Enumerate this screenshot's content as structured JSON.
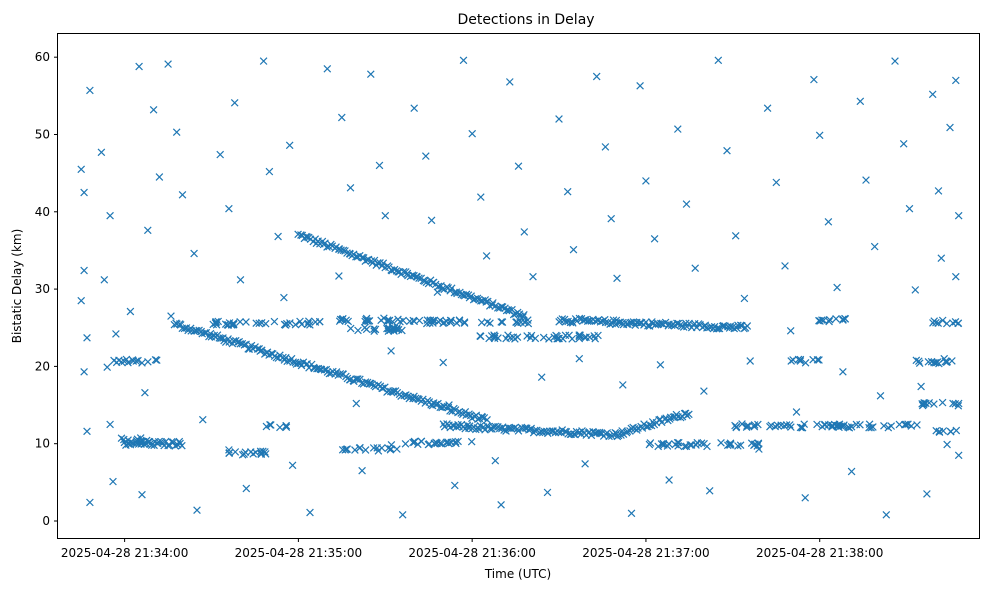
{
  "chart_data": {
    "type": "scatter",
    "title": "Detections in Delay",
    "xlabel": "Time (UTC)",
    "ylabel": "Bistatic Delay (km)",
    "marker": "x",
    "color": "#1f77b4",
    "grid": false,
    "x_start": "2025-04-28 21:33:44",
    "x_end": "2025-04-28 21:38:48",
    "xlim": [
      "2025-04-28 21:33:37",
      "2025-04-28 21:38:55"
    ],
    "ylim": [
      -2.2,
      63
    ],
    "x_ticks": [
      {
        "time": "2025-04-28 21:34:00",
        "label": "2025-04-28 21:34:00"
      },
      {
        "time": "2025-04-28 21:35:00",
        "label": "2025-04-28 21:35:00"
      },
      {
        "time": "2025-04-28 21:36:00",
        "label": "2025-04-28 21:36:00"
      },
      {
        "time": "2025-04-28 21:37:00",
        "label": "2025-04-28 21:37:00"
      },
      {
        "time": "2025-04-28 21:38:00",
        "label": "2025-04-28 21:38:00"
      }
    ],
    "y_ticks": [
      0,
      10,
      20,
      30,
      40,
      50,
      60
    ],
    "tracks": [
      {
        "from": "2025-04-28 21:35:00",
        "to": "2025-04-28 21:36:18",
        "y_from": 37,
        "y_to": 26.5
      },
      {
        "from": "2025-04-28 21:34:17",
        "to": "2025-04-28 21:36:05",
        "y_from": 25.5,
        "y_to": 13
      },
      {
        "from": "2025-04-28 21:35:50",
        "to": "2025-04-28 21:36:50",
        "y_from": 12.3,
        "y_to": 11.2
      },
      {
        "from": "2025-04-28 21:36:50",
        "to": "2025-04-28 21:37:15",
        "y_from": 11.2,
        "y_to": 14
      },
      {
        "from": "2025-04-28 21:36:30",
        "to": "2025-04-28 21:37:35",
        "y_from": 26,
        "y_to": 25
      },
      {
        "from": "2025-04-28 21:34:00",
        "to": "2025-04-28 21:34:20",
        "y_from": 10,
        "y_to": 10
      }
    ],
    "scatter_points": [
      {
        "x": "2025-04-28 21:33:45",
        "y": 45.5
      },
      {
        "x": "2025-04-28 21:33:46",
        "y": 42.5
      },
      {
        "x": "2025-04-28 21:33:46",
        "y": 32.4
      },
      {
        "x": "2025-04-28 21:33:45",
        "y": 28.5
      },
      {
        "x": "2025-04-28 21:33:47",
        "y": 23.7
      },
      {
        "x": "2025-04-28 21:33:46",
        "y": 19.3
      },
      {
        "x": "2025-04-28 21:33:47",
        "y": 11.6
      },
      {
        "x": "2025-04-28 21:33:48",
        "y": 2.4
      },
      {
        "x": "2025-04-28 21:33:48",
        "y": 55.7
      },
      {
        "x": "2025-04-28 21:33:52",
        "y": 47.7
      },
      {
        "x": "2025-04-28 21:33:55",
        "y": 39.5
      },
      {
        "x": "2025-04-28 21:33:53",
        "y": 31.2
      },
      {
        "x": "2025-04-28 21:33:57",
        "y": 24.2
      },
      {
        "x": "2025-04-28 21:33:54",
        "y": 19.9
      },
      {
        "x": "2025-04-28 21:33:55",
        "y": 12.5
      },
      {
        "x": "2025-04-28 21:33:56",
        "y": 5.1
      },
      {
        "x": "2025-04-28 21:34:05",
        "y": 58.8
      },
      {
        "x": "2025-04-28 21:34:10",
        "y": 53.2
      },
      {
        "x": "2025-04-28 21:34:12",
        "y": 44.5
      },
      {
        "x": "2025-04-28 21:34:08",
        "y": 37.6
      },
      {
        "x": "2025-04-28 21:34:02",
        "y": 27.1
      },
      {
        "x": "2025-04-28 21:34:03",
        "y": 20.7
      },
      {
        "x": "2025-04-28 21:34:07",
        "y": 16.6
      },
      {
        "x": "2025-04-28 21:34:06",
        "y": 3.4
      },
      {
        "x": "2025-04-28 21:34:15",
        "y": 59.1
      },
      {
        "x": "2025-04-28 21:34:18",
        "y": 50.3
      },
      {
        "x": "2025-04-28 21:34:20",
        "y": 42.2
      },
      {
        "x": "2025-04-28 21:34:24",
        "y": 34.6
      },
      {
        "x": "2025-04-28 21:34:16",
        "y": 26.5
      },
      {
        "x": "2025-04-28 21:34:27",
        "y": 13.1
      },
      {
        "x": "2025-04-28 21:34:25",
        "y": 1.4
      },
      {
        "x": "2025-04-28 21:34:33",
        "y": 47.4
      },
      {
        "x": "2025-04-28 21:34:36",
        "y": 40.4
      },
      {
        "x": "2025-04-28 21:34:38",
        "y": 54.1
      },
      {
        "x": "2025-04-28 21:34:40",
        "y": 31.2
      },
      {
        "x": "2025-04-28 21:34:36",
        "y": 9.2
      },
      {
        "x": "2025-04-28 21:34:42",
        "y": 4.2
      },
      {
        "x": "2025-04-28 21:34:50",
        "y": 45.2
      },
      {
        "x": "2025-04-28 21:34:53",
        "y": 36.8
      },
      {
        "x": "2025-04-28 21:34:55",
        "y": 28.9
      },
      {
        "x": "2025-04-28 21:34:48",
        "y": 59.5
      },
      {
        "x": "2025-04-28 21:34:57",
        "y": 48.6
      },
      {
        "x": "2025-04-28 21:34:58",
        "y": 7.2
      },
      {
        "x": "2025-04-28 21:35:04",
        "y": 1.1
      },
      {
        "x": "2025-04-28 21:35:10",
        "y": 58.5
      },
      {
        "x": "2025-04-28 21:35:15",
        "y": 52.2
      },
      {
        "x": "2025-04-28 21:35:18",
        "y": 43.1
      },
      {
        "x": "2025-04-28 21:35:14",
        "y": 31.7
      },
      {
        "x": "2025-04-28 21:35:20",
        "y": 15.2
      },
      {
        "x": "2025-04-28 21:35:22",
        "y": 6.5
      },
      {
        "x": "2025-04-28 21:35:25",
        "y": 57.8
      },
      {
        "x": "2025-04-28 21:35:28",
        "y": 46.0
      },
      {
        "x": "2025-04-28 21:35:30",
        "y": 39.5
      },
      {
        "x": "2025-04-28 21:35:32",
        "y": 22.0
      },
      {
        "x": "2025-04-28 21:35:34",
        "y": 9.3
      },
      {
        "x": "2025-04-28 21:35:36",
        "y": 0.8
      },
      {
        "x": "2025-04-28 21:35:40",
        "y": 53.4
      },
      {
        "x": "2025-04-28 21:35:44",
        "y": 47.2
      },
      {
        "x": "2025-04-28 21:35:46",
        "y": 38.9
      },
      {
        "x": "2025-04-28 21:35:48",
        "y": 29.6
      },
      {
        "x": "2025-04-28 21:35:50",
        "y": 20.5
      },
      {
        "x": "2025-04-28 21:35:52",
        "y": 15.0
      },
      {
        "x": "2025-04-28 21:35:54",
        "y": 4.6
      },
      {
        "x": "2025-04-28 21:35:57",
        "y": 59.6
      },
      {
        "x": "2025-04-28 21:36:00",
        "y": 50.1
      },
      {
        "x": "2025-04-28 21:36:03",
        "y": 41.9
      },
      {
        "x": "2025-04-28 21:36:05",
        "y": 34.3
      },
      {
        "x": "2025-04-28 21:36:08",
        "y": 7.8
      },
      {
        "x": "2025-04-28 21:36:10",
        "y": 2.1
      },
      {
        "x": "2025-04-28 21:36:13",
        "y": 56.8
      },
      {
        "x": "2025-04-28 21:36:16",
        "y": 45.9
      },
      {
        "x": "2025-04-28 21:36:18",
        "y": 37.4
      },
      {
        "x": "2025-04-28 21:36:21",
        "y": 31.6
      },
      {
        "x": "2025-04-28 21:36:24",
        "y": 18.6
      },
      {
        "x": "2025-04-28 21:36:26",
        "y": 3.7
      },
      {
        "x": "2025-04-28 21:36:30",
        "y": 52.0
      },
      {
        "x": "2025-04-28 21:36:33",
        "y": 42.6
      },
      {
        "x": "2025-04-28 21:36:35",
        "y": 35.1
      },
      {
        "x": "2025-04-28 21:36:37",
        "y": 21.0
      },
      {
        "x": "2025-04-28 21:36:39",
        "y": 7.4
      },
      {
        "x": "2025-04-28 21:36:43",
        "y": 57.5
      },
      {
        "x": "2025-04-28 21:36:46",
        "y": 48.4
      },
      {
        "x": "2025-04-28 21:36:48",
        "y": 39.1
      },
      {
        "x": "2025-04-28 21:36:50",
        "y": 31.4
      },
      {
        "x": "2025-04-28 21:36:52",
        "y": 17.6
      },
      {
        "x": "2025-04-28 21:36:55",
        "y": 1.0
      },
      {
        "x": "2025-04-28 21:36:58",
        "y": 56.3
      },
      {
        "x": "2025-04-28 21:37:00",
        "y": 44.0
      },
      {
        "x": "2025-04-28 21:37:03",
        "y": 36.5
      },
      {
        "x": "2025-04-28 21:37:05",
        "y": 20.2
      },
      {
        "x": "2025-04-28 21:37:08",
        "y": 5.3
      },
      {
        "x": "2025-04-28 21:37:11",
        "y": 50.7
      },
      {
        "x": "2025-04-28 21:37:14",
        "y": 41.0
      },
      {
        "x": "2025-04-28 21:37:17",
        "y": 32.7
      },
      {
        "x": "2025-04-28 21:37:20",
        "y": 16.8
      },
      {
        "x": "2025-04-28 21:37:22",
        "y": 3.9
      },
      {
        "x": "2025-04-28 21:37:25",
        "y": 59.6
      },
      {
        "x": "2025-04-28 21:37:28",
        "y": 47.9
      },
      {
        "x": "2025-04-28 21:37:31",
        "y": 36.9
      },
      {
        "x": "2025-04-28 21:37:34",
        "y": 28.8
      },
      {
        "x": "2025-04-28 21:37:36",
        "y": 20.7
      },
      {
        "x": "2025-04-28 21:37:39",
        "y": 9.3
      },
      {
        "x": "2025-04-28 21:37:42",
        "y": 53.4
      },
      {
        "x": "2025-04-28 21:37:45",
        "y": 43.8
      },
      {
        "x": "2025-04-28 21:37:48",
        "y": 33.0
      },
      {
        "x": "2025-04-28 21:37:50",
        "y": 24.6
      },
      {
        "x": "2025-04-28 21:37:52",
        "y": 14.1
      },
      {
        "x": "2025-04-28 21:37:55",
        "y": 3.0
      },
      {
        "x": "2025-04-28 21:37:58",
        "y": 57.1
      },
      {
        "x": "2025-04-28 21:38:00",
        "y": 49.9
      },
      {
        "x": "2025-04-28 21:38:03",
        "y": 38.7
      },
      {
        "x": "2025-04-28 21:38:06",
        "y": 30.2
      },
      {
        "x": "2025-04-28 21:38:08",
        "y": 19.3
      },
      {
        "x": "2025-04-28 21:38:11",
        "y": 6.4
      },
      {
        "x": "2025-04-28 21:38:14",
        "y": 54.3
      },
      {
        "x": "2025-04-28 21:38:16",
        "y": 44.1
      },
      {
        "x": "2025-04-28 21:38:19",
        "y": 35.5
      },
      {
        "x": "2025-04-28 21:38:21",
        "y": 16.2
      },
      {
        "x": "2025-04-28 21:38:23",
        "y": 0.8
      },
      {
        "x": "2025-04-28 21:38:26",
        "y": 59.5
      },
      {
        "x": "2025-04-28 21:38:29",
        "y": 48.8
      },
      {
        "x": "2025-04-28 21:38:31",
        "y": 40.4
      },
      {
        "x": "2025-04-28 21:38:33",
        "y": 29.9
      },
      {
        "x": "2025-04-28 21:38:35",
        "y": 17.4
      },
      {
        "x": "2025-04-28 21:38:37",
        "y": 3.5
      },
      {
        "x": "2025-04-28 21:38:39",
        "y": 55.2
      },
      {
        "x": "2025-04-28 21:38:41",
        "y": 42.7
      },
      {
        "x": "2025-04-28 21:38:42",
        "y": 34.0
      },
      {
        "x": "2025-04-28 21:38:43",
        "y": 21.0
      },
      {
        "x": "2025-04-28 21:38:44",
        "y": 9.9
      },
      {
        "x": "2025-04-28 21:38:45",
        "y": 50.9
      },
      {
        "x": "2025-04-28 21:38:46",
        "y": 25.6
      },
      {
        "x": "2025-04-28 21:38:47",
        "y": 57.0
      },
      {
        "x": "2025-04-28 21:38:47",
        "y": 31.6
      },
      {
        "x": "2025-04-28 21:38:48",
        "y": 39.5
      },
      {
        "x": "2025-04-28 21:38:48",
        "y": 15.2
      },
      {
        "x": "2025-04-28 21:38:48",
        "y": 8.5
      }
    ],
    "bands": [
      {
        "y": 20.7,
        "from": "2025-04-28 21:33:56",
        "to": "2025-04-28 21:34:12"
      },
      {
        "y": 10.5,
        "from": "2025-04-28 21:33:58",
        "to": "2025-04-28 21:34:10"
      },
      {
        "y": 8.8,
        "from": "2025-04-28 21:34:33",
        "to": "2025-04-28 21:34:50"
      },
      {
        "y": 25.6,
        "from": "2025-04-28 21:34:30",
        "to": "2025-04-28 21:35:10"
      },
      {
        "y": 12.2,
        "from": "2025-04-28 21:34:48",
        "to": "2025-04-28 21:34:56"
      },
      {
        "y": 26.0,
        "from": "2025-04-28 21:35:12",
        "to": "2025-04-28 21:35:40"
      },
      {
        "y": 24.8,
        "from": "2025-04-28 21:35:15",
        "to": "2025-04-28 21:35:38"
      },
      {
        "y": 9.3,
        "from": "2025-04-28 21:35:15",
        "to": "2025-04-28 21:35:32"
      },
      {
        "y": 10.1,
        "from": "2025-04-28 21:35:32",
        "to": "2025-04-28 21:36:00"
      },
      {
        "y": 25.8,
        "from": "2025-04-28 21:35:40",
        "to": "2025-04-28 21:36:20"
      },
      {
        "y": 23.8,
        "from": "2025-04-28 21:36:00",
        "to": "2025-04-28 21:36:45"
      },
      {
        "y": 9.9,
        "from": "2025-04-28 21:37:00",
        "to": "2025-04-28 21:37:40"
      },
      {
        "y": 12.3,
        "from": "2025-04-28 21:37:30",
        "to": "2025-04-28 21:38:35"
      },
      {
        "y": 26.0,
        "from": "2025-04-28 21:37:58",
        "to": "2025-04-28 21:38:10"
      },
      {
        "y": 20.7,
        "from": "2025-04-28 21:37:50",
        "to": "2025-04-28 21:38:00"
      },
      {
        "y": 20.6,
        "from": "2025-04-28 21:38:33",
        "to": "2025-04-28 21:38:48"
      },
      {
        "y": 25.7,
        "from": "2025-04-28 21:38:38",
        "to": "2025-04-28 21:38:48"
      },
      {
        "y": 15.1,
        "from": "2025-04-28 21:38:35",
        "to": "2025-04-28 21:38:48"
      },
      {
        "y": 11.6,
        "from": "2025-04-28 21:38:40",
        "to": "2025-04-28 21:38:48"
      }
    ]
  }
}
